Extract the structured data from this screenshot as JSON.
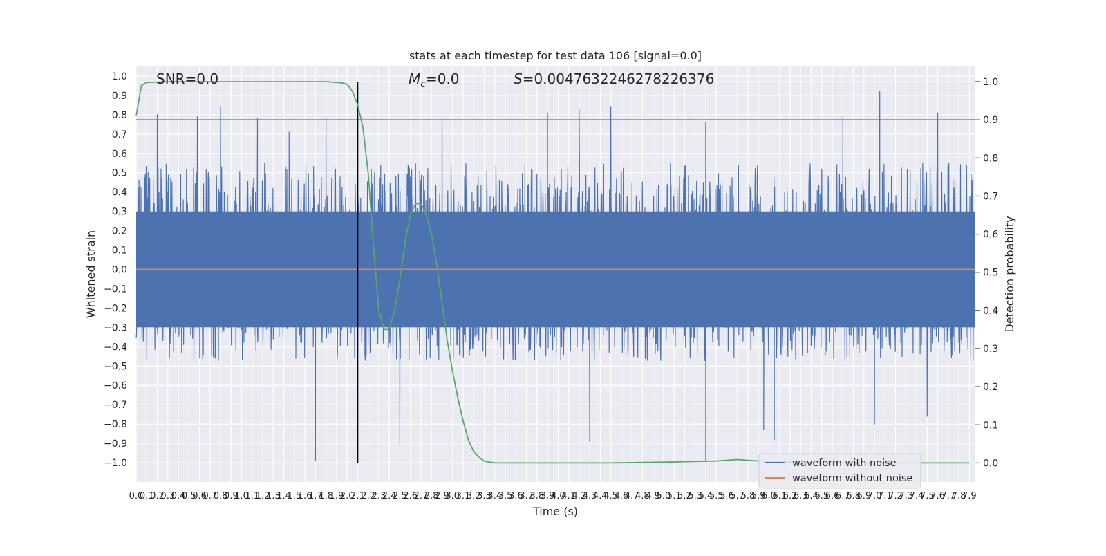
{
  "chart_data": {
    "type": "line",
    "title": "stats at each timestep for test data 106 [signal=0.0]",
    "xlabel": "Time (s)",
    "ylabel": "Whitened strain",
    "y2label": "Detection probability",
    "xlim": [
      0,
      7.95
    ],
    "ylim": [
      -1.1,
      1.05
    ],
    "y2lim": [
      -0.05,
      1.04
    ],
    "grid": true,
    "legend_placement": "lower right",
    "colors": {
      "background": "#eaeaf2",
      "grid": "#ffffff",
      "noisy": "#4c72b0",
      "clean": "#dd8452",
      "probability": "#55a868",
      "threshold": "#c44e52",
      "marker": "#000000"
    },
    "x_ticks": [
      0.0,
      0.1,
      0.2,
      0.3,
      0.4,
      0.5,
      0.6,
      0.7,
      0.8,
      0.9,
      1.0,
      1.1,
      1.2,
      1.3,
      1.4,
      1.5,
      1.6,
      1.7,
      1.8,
      1.9,
      2.0,
      2.1,
      2.2,
      2.3,
      2.4,
      2.5,
      2.6,
      2.7,
      2.8,
      2.9,
      3.0,
      3.1,
      3.2,
      3.3,
      3.4,
      3.5,
      3.6,
      3.7,
      3.8,
      3.9,
      4.0,
      4.1,
      4.2,
      4.3,
      4.4,
      4.5,
      4.6,
      4.7,
      4.8,
      4.9,
      5.0,
      5.1,
      5.2,
      5.3,
      5.4,
      5.5,
      5.6,
      5.7,
      5.8,
      5.9,
      6.0,
      6.1,
      6.2,
      6.3,
      6.4,
      6.5,
      6.6,
      6.7,
      6.8,
      6.9,
      7.0,
      7.1,
      7.2,
      7.3,
      7.4,
      7.5,
      7.6,
      7.7,
      7.8,
      7.9
    ],
    "y_ticks": [
      1.0,
      0.9,
      0.8,
      0.7,
      0.6,
      0.5,
      0.4,
      0.3,
      0.2,
      0.1,
      0.0,
      -0.1,
      -0.2,
      -0.3,
      -0.4,
      -0.5,
      -0.6,
      -0.7,
      -0.8,
      -0.9,
      -1.0
    ],
    "y2_ticks": [
      1.0,
      0.9,
      0.8,
      0.7,
      0.6,
      0.5,
      0.4,
      0.3,
      0.2,
      0.1,
      0.0
    ],
    "annotations": {
      "snr": "SNR=0.0",
      "mc_symbol": "M",
      "mc_sub": "c",
      "mc_value": "=0.0",
      "s_symbol": "S",
      "s_value": "=0.0047632246278226376"
    },
    "threshold_y2": 0.9,
    "marker_x": 2.1,
    "series": [
      {
        "name": "waveform with noise",
        "kind": "noisy_strain",
        "typical_range": [
          -0.45,
          0.55
        ],
        "spikes": [
          [
            0.2,
            0.8
          ],
          [
            0.58,
            0.79
          ],
          [
            0.8,
            0.84
          ],
          [
            1.15,
            0.78
          ],
          [
            1.45,
            0.71
          ],
          [
            1.8,
            0.79
          ],
          [
            2.9,
            0.78
          ],
          [
            3.9,
            0.81
          ],
          [
            4.2,
            0.83
          ],
          [
            4.5,
            0.84
          ],
          [
            5.4,
            0.76
          ],
          [
            6.7,
            0.79
          ],
          [
            7.05,
            0.92
          ],
          [
            7.6,
            0.81
          ],
          [
            1.7,
            -0.99
          ],
          [
            2.5,
            -0.91
          ],
          [
            4.3,
            -0.89
          ],
          [
            5.4,
            -0.99
          ],
          [
            5.95,
            -0.83
          ],
          [
            6.05,
            -0.88
          ],
          [
            7.0,
            -0.8
          ],
          [
            7.5,
            -0.76
          ]
        ]
      },
      {
        "name": "waveform without noise",
        "kind": "clean_strain",
        "values_y": [
          0.0,
          0.0
        ],
        "x": [
          0.0,
          7.95
        ]
      },
      {
        "name": "Detection probability",
        "kind": "probability",
        "axis": "y2",
        "x": [
          0.0,
          0.05,
          0.1,
          0.3,
          0.8,
          1.3,
          1.8,
          1.95,
          2.0,
          2.05,
          2.1,
          2.15,
          2.2,
          2.25,
          2.3,
          2.35,
          2.4,
          2.45,
          2.5,
          2.55,
          2.6,
          2.65,
          2.7,
          2.75,
          2.8,
          2.85,
          2.9,
          2.95,
          3.0,
          3.05,
          3.1,
          3.15,
          3.2,
          3.25,
          3.3,
          3.35,
          3.4,
          3.5,
          4.0,
          4.5,
          5.0,
          5.5,
          5.7,
          5.9,
          6.5,
          7.0,
          7.5,
          7.9
        ],
        "y": [
          0.91,
          0.99,
          0.998,
          1.0,
          1.0,
          1.0,
          1.0,
          0.997,
          0.993,
          0.975,
          0.94,
          0.88,
          0.76,
          0.57,
          0.4,
          0.35,
          0.35,
          0.4,
          0.48,
          0.58,
          0.65,
          0.68,
          0.68,
          0.65,
          0.6,
          0.52,
          0.42,
          0.32,
          0.24,
          0.17,
          0.11,
          0.06,
          0.03,
          0.015,
          0.005,
          0.002,
          0.0,
          0.0,
          0.0,
          0.0,
          0.002,
          0.005,
          0.009,
          0.005,
          0.0,
          0.0,
          0.0,
          0.0
        ]
      }
    ]
  }
}
